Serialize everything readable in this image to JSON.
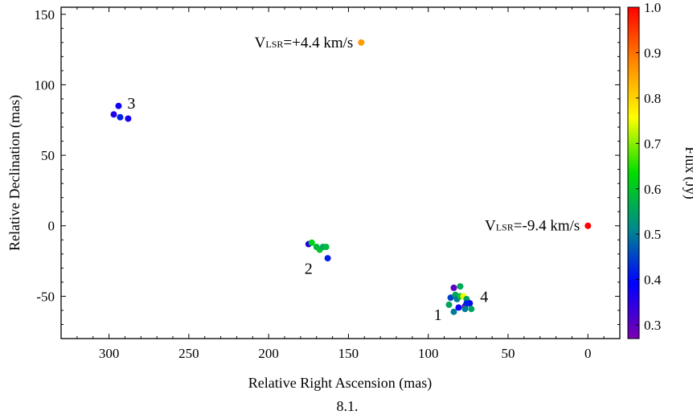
{
  "chart_data": {
    "type": "scatter",
    "xlabel": "Relative Right Ascension (mas)",
    "ylabel": "Relative Declination (mas)",
    "colorbar_label": "Flux (Jy)",
    "caption": "8.1.",
    "xlim": [
      330,
      -20
    ],
    "ylim": [
      -80,
      155
    ],
    "x_reversed": true,
    "x_ticks": [
      300,
      250,
      200,
      150,
      100,
      50,
      0
    ],
    "y_ticks": [
      150,
      100,
      50,
      0,
      -50
    ],
    "clim": [
      0.27,
      1.0
    ],
    "c_ticks": [
      1.0,
      0.9,
      0.8,
      0.7,
      0.6,
      0.5,
      0.4,
      0.3
    ],
    "colormap": [
      "#7a00b0",
      "#0000ff",
      "#008b8b",
      "#00dd00",
      "#ffff00",
      "#ff8800",
      "#ff0000"
    ],
    "points": [
      {
        "x": 142,
        "y": 130,
        "flux": 0.86
      },
      {
        "x": 0,
        "y": 0,
        "flux": 1.0
      },
      {
        "x": 294,
        "y": 85,
        "flux": 0.38
      },
      {
        "x": 297,
        "y": 79,
        "flux": 0.36
      },
      {
        "x": 293,
        "y": 77,
        "flux": 0.42
      },
      {
        "x": 288,
        "y": 76,
        "flux": 0.37
      },
      {
        "x": 175,
        "y": -13,
        "flux": 0.36
      },
      {
        "x": 173,
        "y": -12,
        "flux": 0.62
      },
      {
        "x": 170,
        "y": -15,
        "flux": 0.58
      },
      {
        "x": 168,
        "y": -17,
        "flux": 0.6
      },
      {
        "x": 166,
        "y": -15,
        "flux": 0.56
      },
      {
        "x": 164,
        "y": -15,
        "flux": 0.58
      },
      {
        "x": 163,
        "y": -23,
        "flux": 0.42
      },
      {
        "x": 84,
        "y": -44,
        "flux": 0.3
      },
      {
        "x": 80,
        "y": -43,
        "flux": 0.56
      },
      {
        "x": 86,
        "y": -51,
        "flux": 0.45
      },
      {
        "x": 83,
        "y": -49,
        "flux": 0.55
      },
      {
        "x": 82,
        "y": -52,
        "flux": 0.5
      },
      {
        "x": 80,
        "y": -50,
        "flux": 0.6
      },
      {
        "x": 78,
        "y": -50,
        "flux": 0.75
      },
      {
        "x": 76,
        "y": -52,
        "flux": 0.55
      },
      {
        "x": 74,
        "y": -55,
        "flux": 0.38
      },
      {
        "x": 87,
        "y": -56,
        "flux": 0.55
      },
      {
        "x": 81,
        "y": -58,
        "flux": 0.38
      },
      {
        "x": 77,
        "y": -57,
        "flux": 0.3
      },
      {
        "x": 73,
        "y": -59,
        "flux": 0.55
      },
      {
        "x": 84,
        "y": -61,
        "flux": 0.5
      },
      {
        "x": 76,
        "y": -55,
        "flux": 0.42
      },
      {
        "x": 77,
        "y": -59,
        "flux": 0.5
      }
    ],
    "annotations": [
      {
        "text": "V",
        "sub": "LSR",
        "suffix": "=+4.4 km/s",
        "x": 142,
        "y": 130,
        "anchor": "end"
      },
      {
        "text": "V",
        "sub": "LSR",
        "suffix": "=-9.4 km/s",
        "x": 0,
        "y": 0,
        "anchor": "end"
      }
    ],
    "group_labels": [
      {
        "text": "3",
        "x": 286,
        "y": 87
      },
      {
        "text": "2",
        "x": 175,
        "y": -30
      },
      {
        "text": "1",
        "x": 94,
        "y": -63
      },
      {
        "text": "4",
        "x": 65,
        "y": -50
      }
    ],
    "grid": false
  }
}
